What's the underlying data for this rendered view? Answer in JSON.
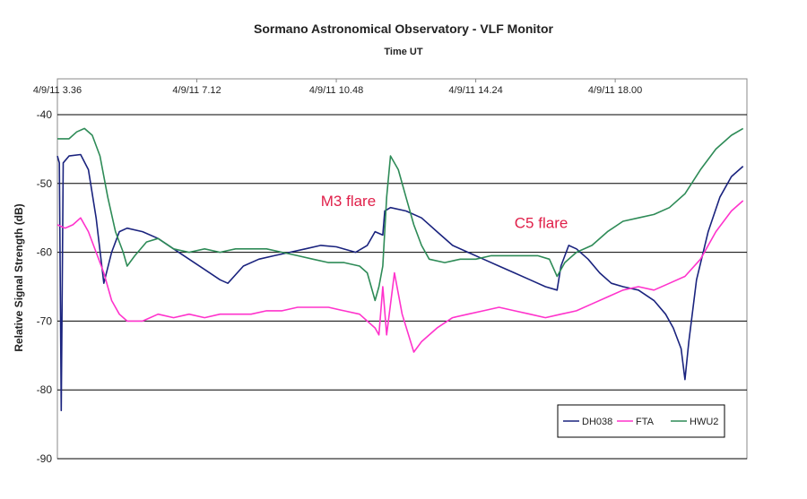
{
  "chart_data": {
    "type": "line",
    "title": "Sormano Astronomical Observatory - VLF Monitor",
    "xlabel": "Time UT",
    "ylabel": "Relative Signal Strength (dB)",
    "ylim": [
      -90,
      -40
    ],
    "yticks": [
      "-40",
      "-50",
      "-60",
      "-70",
      "-80",
      "-90"
    ],
    "xticks": [
      {
        "label": "4/9/11 3.36",
        "hour": 3.6
      },
      {
        "label": "4/9/11 7.12",
        "hour": 7.2
      },
      {
        "label": "4/9/11 10.48",
        "hour": 10.8
      },
      {
        "label": "4/9/11 14.24",
        "hour": 14.4
      },
      {
        "label": "4/9/11 18.00",
        "hour": 18.0
      }
    ],
    "xlim": [
      3.6,
      21.4
    ],
    "grid": "horizontal",
    "legend_position": "bottom-right",
    "annotations": [
      {
        "text": "M3 flare",
        "hour": 10.4,
        "y": -53.3,
        "color": "#e0204a"
      },
      {
        "text": "C5 flare",
        "hour": 15.4,
        "y": -56.5,
        "color": "#e0204a"
      }
    ],
    "series": [
      {
        "name": "DH038",
        "color": "#1a237e",
        "points": [
          [
            3.6,
            -46
          ],
          [
            3.65,
            -47
          ],
          [
            3.7,
            -83
          ],
          [
            3.75,
            -47
          ],
          [
            3.9,
            -46
          ],
          [
            4.2,
            -45.8
          ],
          [
            4.4,
            -48
          ],
          [
            4.6,
            -55
          ],
          [
            4.8,
            -64.5
          ],
          [
            5.0,
            -60
          ],
          [
            5.2,
            -57
          ],
          [
            5.4,
            -56.5
          ],
          [
            5.8,
            -57
          ],
          [
            6.2,
            -58
          ],
          [
            6.6,
            -59.5
          ],
          [
            7.0,
            -61
          ],
          [
            7.4,
            -62.5
          ],
          [
            7.8,
            -64
          ],
          [
            8.0,
            -64.5
          ],
          [
            8.4,
            -62
          ],
          [
            8.8,
            -61
          ],
          [
            9.2,
            -60.5
          ],
          [
            9.6,
            -60
          ],
          [
            10.0,
            -59.5
          ],
          [
            10.4,
            -59
          ],
          [
            10.8,
            -59.2
          ],
          [
            11.3,
            -60
          ],
          [
            11.6,
            -59
          ],
          [
            11.8,
            -57
          ],
          [
            12.0,
            -57.5
          ],
          [
            12.05,
            -54
          ],
          [
            12.2,
            -53.5
          ],
          [
            12.6,
            -54
          ],
          [
            13.0,
            -55
          ],
          [
            13.4,
            -57
          ],
          [
            13.8,
            -59
          ],
          [
            14.2,
            -60
          ],
          [
            14.6,
            -61
          ],
          [
            15.0,
            -62
          ],
          [
            15.4,
            -63
          ],
          [
            15.8,
            -64
          ],
          [
            16.2,
            -65
          ],
          [
            16.5,
            -65.5
          ],
          [
            16.6,
            -62
          ],
          [
            16.8,
            -59
          ],
          [
            17.0,
            -59.5
          ],
          [
            17.3,
            -61
          ],
          [
            17.6,
            -63
          ],
          [
            17.9,
            -64.5
          ],
          [
            18.2,
            -65
          ],
          [
            18.6,
            -65.5
          ],
          [
            19.0,
            -67
          ],
          [
            19.3,
            -69
          ],
          [
            19.5,
            -71
          ],
          [
            19.7,
            -74
          ],
          [
            19.8,
            -78.5
          ],
          [
            19.9,
            -73
          ],
          [
            20.1,
            -64
          ],
          [
            20.4,
            -57
          ],
          [
            20.7,
            -52
          ],
          [
            21.0,
            -49
          ],
          [
            21.3,
            -47.5
          ]
        ]
      },
      {
        "name": "FTA",
        "color": "#ff33cc",
        "points": [
          [
            3.6,
            -56
          ],
          [
            3.8,
            -56.5
          ],
          [
            4.0,
            -56
          ],
          [
            4.2,
            -55
          ],
          [
            4.4,
            -57
          ],
          [
            4.6,
            -60
          ],
          [
            4.8,
            -63
          ],
          [
            5.0,
            -67
          ],
          [
            5.2,
            -69
          ],
          [
            5.4,
            -70
          ],
          [
            5.8,
            -70
          ],
          [
            6.2,
            -69
          ],
          [
            6.6,
            -69.5
          ],
          [
            7.0,
            -69
          ],
          [
            7.4,
            -69.5
          ],
          [
            7.8,
            -69
          ],
          [
            8.2,
            -69
          ],
          [
            8.6,
            -69
          ],
          [
            9.0,
            -68.5
          ],
          [
            9.4,
            -68.5
          ],
          [
            9.8,
            -68
          ],
          [
            10.2,
            -68
          ],
          [
            10.6,
            -68
          ],
          [
            11.0,
            -68.5
          ],
          [
            11.4,
            -69
          ],
          [
            11.8,
            -71
          ],
          [
            11.9,
            -72
          ],
          [
            12.0,
            -65
          ],
          [
            12.1,
            -72
          ],
          [
            12.3,
            -63
          ],
          [
            12.5,
            -69
          ],
          [
            12.8,
            -74.5
          ],
          [
            13.0,
            -73
          ],
          [
            13.4,
            -71
          ],
          [
            13.8,
            -69.5
          ],
          [
            14.2,
            -69
          ],
          [
            14.6,
            -68.5
          ],
          [
            15.0,
            -68
          ],
          [
            15.4,
            -68.5
          ],
          [
            15.8,
            -69
          ],
          [
            16.2,
            -69.5
          ],
          [
            16.6,
            -69
          ],
          [
            17.0,
            -68.5
          ],
          [
            17.4,
            -67.5
          ],
          [
            17.8,
            -66.5
          ],
          [
            18.2,
            -65.5
          ],
          [
            18.6,
            -65
          ],
          [
            19.0,
            -65.5
          ],
          [
            19.4,
            -64.5
          ],
          [
            19.8,
            -63.5
          ],
          [
            20.2,
            -61
          ],
          [
            20.6,
            -57
          ],
          [
            21.0,
            -54
          ],
          [
            21.3,
            -52.5
          ]
        ]
      },
      {
        "name": "HWU2",
        "color": "#2e8b57",
        "points": [
          [
            3.6,
            -43.5
          ],
          [
            3.9,
            -43.5
          ],
          [
            4.1,
            -42.5
          ],
          [
            4.3,
            -42
          ],
          [
            4.5,
            -43
          ],
          [
            4.7,
            -46
          ],
          [
            4.9,
            -52
          ],
          [
            5.1,
            -57
          ],
          [
            5.3,
            -60
          ],
          [
            5.4,
            -62
          ],
          [
            5.6,
            -60.5
          ],
          [
            5.9,
            -58.5
          ],
          [
            6.2,
            -58
          ],
          [
            6.6,
            -59.5
          ],
          [
            7.0,
            -60
          ],
          [
            7.4,
            -59.5
          ],
          [
            7.8,
            -60
          ],
          [
            8.2,
            -59.5
          ],
          [
            8.6,
            -59.5
          ],
          [
            9.0,
            -59.5
          ],
          [
            9.4,
            -60
          ],
          [
            9.8,
            -60.5
          ],
          [
            10.2,
            -61
          ],
          [
            10.6,
            -61.5
          ],
          [
            11.0,
            -61.5
          ],
          [
            11.4,
            -62
          ],
          [
            11.6,
            -63
          ],
          [
            11.8,
            -67
          ],
          [
            11.9,
            -65
          ],
          [
            12.0,
            -62
          ],
          [
            12.1,
            -52
          ],
          [
            12.2,
            -46
          ],
          [
            12.4,
            -48
          ],
          [
            12.6,
            -52
          ],
          [
            12.8,
            -56
          ],
          [
            13.0,
            -59
          ],
          [
            13.2,
            -61
          ],
          [
            13.6,
            -61.5
          ],
          [
            14.0,
            -61
          ],
          [
            14.4,
            -61
          ],
          [
            14.8,
            -60.5
          ],
          [
            15.2,
            -60.5
          ],
          [
            15.6,
            -60.5
          ],
          [
            16.0,
            -60.5
          ],
          [
            16.3,
            -61
          ],
          [
            16.5,
            -63.5
          ],
          [
            16.7,
            -61.5
          ],
          [
            17.0,
            -60
          ],
          [
            17.4,
            -59
          ],
          [
            17.8,
            -57
          ],
          [
            18.2,
            -55.5
          ],
          [
            18.6,
            -55
          ],
          [
            19.0,
            -54.5
          ],
          [
            19.4,
            -53.5
          ],
          [
            19.8,
            -51.5
          ],
          [
            20.2,
            -48
          ],
          [
            20.6,
            -45
          ],
          [
            21.0,
            -43
          ],
          [
            21.3,
            -42
          ]
        ]
      }
    ]
  }
}
